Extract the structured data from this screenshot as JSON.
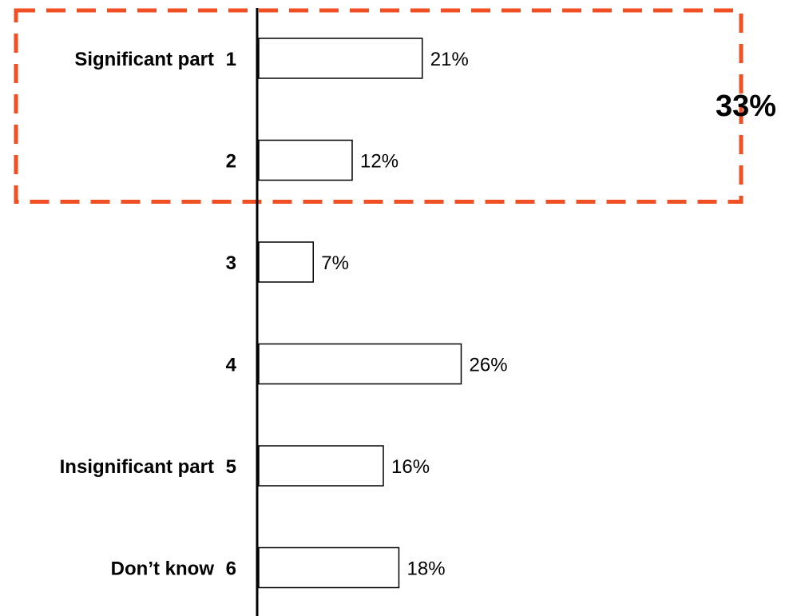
{
  "chart_data": {
    "type": "bar",
    "orientation": "horizontal",
    "categories": [
      "1",
      "2",
      "3",
      "4",
      "5",
      "6"
    ],
    "category_labels": [
      "Significant part",
      "",
      "",
      "",
      "Insignificant part",
      "Don’t know"
    ],
    "values": [
      21,
      12,
      7,
      26,
      16,
      18
    ],
    "value_labels": [
      "21%",
      "12%",
      "7%",
      "26%",
      "16%",
      "18%"
    ],
    "unit": "%",
    "xlim": [
      0,
      66
    ],
    "grid": false,
    "legend": "none",
    "callout": {
      "text": "33%",
      "covers_categories": [
        "1",
        "2"
      ],
      "color": "#f04e23",
      "style": "dashed"
    }
  }
}
